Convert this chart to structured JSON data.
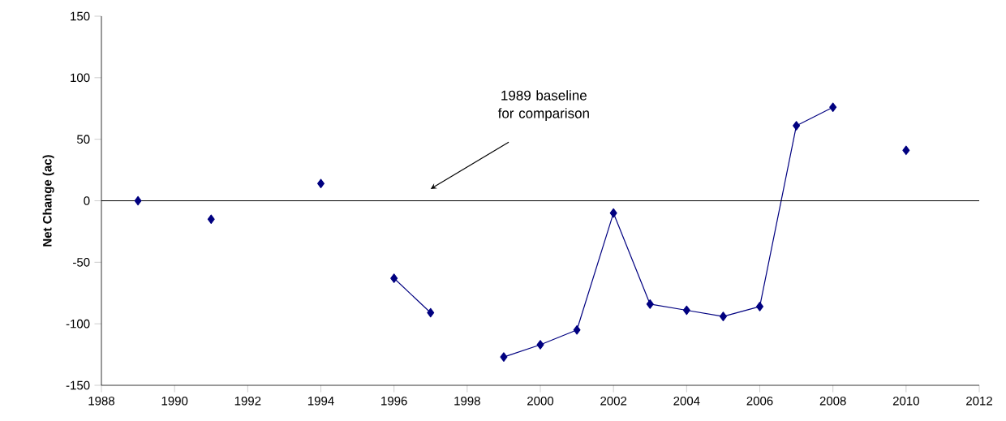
{
  "chart_data": {
    "type": "line",
    "ylabel": "Net Change (ac)",
    "x": [
      1989,
      1990,
      1991,
      1992,
      1993,
      1994,
      1995,
      1996,
      1997,
      1998,
      1999,
      2000,
      2001,
      2002,
      2003,
      2004,
      2005,
      2006,
      2007,
      2008,
      2009,
      2010
    ],
    "series": [
      {
        "color": "#000080",
        "values": [
          0,
          null,
          -15,
          null,
          null,
          14,
          null,
          -63,
          -91,
          null,
          -127,
          -117,
          -105,
          -10,
          -84,
          -89,
          -94,
          -86,
          61,
          76,
          null,
          41
        ]
      }
    ],
    "xlim": [
      1988,
      2012
    ],
    "xticks": [
      1988,
      1990,
      1992,
      1994,
      1996,
      1998,
      2000,
      2002,
      2004,
      2006,
      2008,
      2010,
      2012
    ],
    "ylim": [
      -150,
      150
    ],
    "yticks": [
      -150,
      -100,
      -50,
      0,
      50,
      100,
      150
    ],
    "ref_lines": [
      {
        "axis": "y",
        "value": 0,
        "color": "#000000"
      }
    ],
    "annotations": [
      "1989 baseline for comparison"
    ],
    "marker": "diamond",
    "line_style": "solid"
  }
}
